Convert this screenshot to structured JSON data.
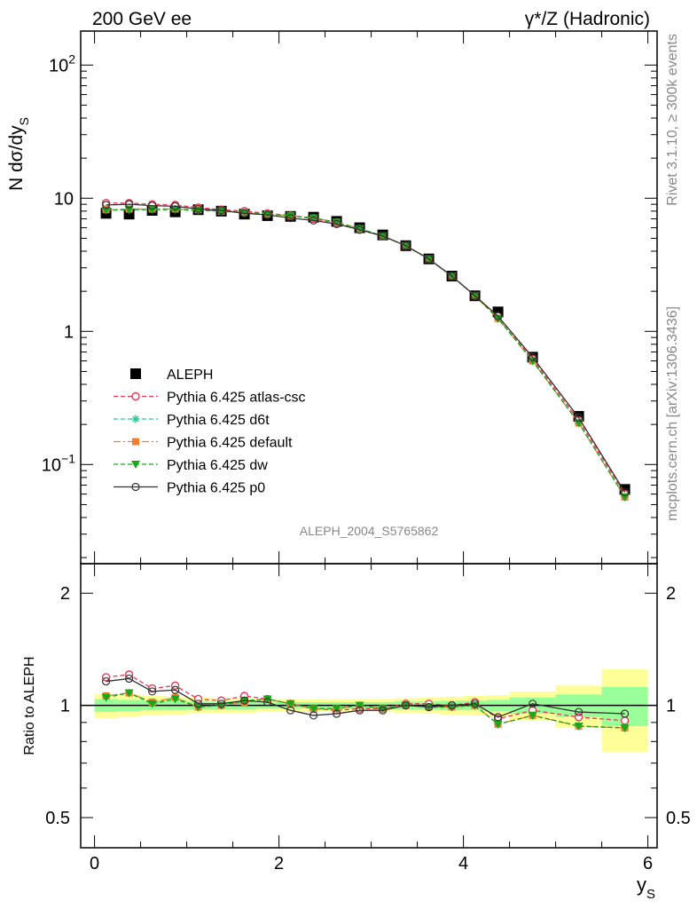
{
  "header": {
    "left": "200 GeV ee",
    "right": "γ*/Z (Hadronic)"
  },
  "side_labels": {
    "rivet": "Rivet 3.1.10, ≥ 300k events",
    "mcplots": "mcplots.cern.ch [arXiv:1306.3436]"
  },
  "watermark": "ALEPH_2004_S5765862",
  "colors": {
    "data": "#000000",
    "atlas_csc": "#e8375a",
    "d6t": "#2fc49a",
    "default": "#f08030",
    "dw": "#1aa81a",
    "p0": "#333333",
    "band_outer": "#ffff99",
    "band_inner": "#99ff99"
  },
  "chart_data": [
    {
      "type": "scatter",
      "scale": "log",
      "ylabel": "N dσ/dy",
      "ylabel_sub": "S",
      "xlim": [
        -0.15,
        6.1
      ],
      "ylim": [
        0.018,
        180
      ],
      "y_ticks": [
        {
          "value": 100,
          "label": "10",
          "sup": "2"
        },
        {
          "value": 10,
          "label": "10",
          "sup": ""
        },
        {
          "value": 1,
          "label": "1",
          "sup": ""
        },
        {
          "value": 0.1,
          "label": "10",
          "sup": "−1"
        }
      ],
      "x": [
        0.125,
        0.375,
        0.625,
        0.875,
        1.125,
        1.375,
        1.625,
        1.875,
        2.125,
        2.375,
        2.625,
        2.875,
        3.125,
        3.375,
        3.625,
        3.875,
        4.125,
        4.375,
        4.75,
        5.25,
        5.75
      ],
      "series": [
        {
          "name": "ALEPH",
          "key": "data",
          "values": [
            7.7,
            7.6,
            8.1,
            7.9,
            8.2,
            8.0,
            7.6,
            7.4,
            7.3,
            7.2,
            6.7,
            6.0,
            5.3,
            4.4,
            3.5,
            2.6,
            1.85,
            1.4,
            0.64,
            0.23,
            0.065
          ]
        },
        {
          "name": "Pythia 6.425 atlas-csc",
          "key": "atlas_csc",
          "values": [
            9.2,
            9.2,
            9.0,
            8.9,
            8.5,
            8.2,
            8.0,
            7.7,
            7.4,
            7.0,
            6.5,
            5.8,
            5.2,
            4.4,
            3.5,
            2.6,
            1.85,
            1.3,
            0.62,
            0.215,
            0.06
          ]
        },
        {
          "name": "Pythia 6.425 d6t",
          "key": "d6t",
          "values": [
            8.2,
            8.2,
            8.3,
            8.3,
            8.2,
            8.0,
            7.8,
            7.6,
            7.4,
            7.1,
            6.6,
            5.9,
            5.2,
            4.4,
            3.5,
            2.6,
            1.85,
            1.25,
            0.6,
            0.205,
            0.057
          ]
        },
        {
          "name": "Pythia 6.425 default",
          "key": "default",
          "values": [
            8.2,
            8.3,
            8.3,
            8.3,
            8.2,
            8.0,
            7.8,
            7.6,
            7.4,
            7.1,
            6.6,
            5.9,
            5.2,
            4.4,
            3.5,
            2.6,
            1.85,
            1.25,
            0.6,
            0.205,
            0.057
          ]
        },
        {
          "name": "Pythia 6.425 dw",
          "key": "dw",
          "values": [
            8.1,
            8.2,
            8.2,
            8.2,
            8.1,
            8.0,
            7.8,
            7.6,
            7.4,
            7.1,
            6.6,
            5.9,
            5.2,
            4.4,
            3.5,
            2.6,
            1.85,
            1.25,
            0.6,
            0.205,
            0.057
          ]
        },
        {
          "name": "Pythia 6.425 p0",
          "key": "p0",
          "values": [
            8.9,
            9.0,
            8.8,
            8.7,
            8.3,
            8.1,
            7.7,
            7.5,
            7.1,
            6.8,
            6.4,
            5.8,
            5.2,
            4.4,
            3.5,
            2.6,
            1.85,
            1.3,
            0.64,
            0.225,
            0.062
          ]
        }
      ],
      "legend": [
        {
          "key": "data",
          "label": "ALEPH"
        },
        {
          "key": "atlas_csc",
          "label": "Pythia 6.425 atlas-csc"
        },
        {
          "key": "d6t",
          "label": "Pythia 6.425 d6t"
        },
        {
          "key": "default",
          "label": "Pythia 6.425 default"
        },
        {
          "key": "dw",
          "label": "Pythia 6.425 dw"
        },
        {
          "key": "p0",
          "label": "Pythia 6.425 p0"
        }
      ],
      "legend_position": "left-middle"
    },
    {
      "type": "line",
      "scale": "log",
      "ylabel": "Ratio to ALEPH",
      "xlabel": "y",
      "xlabel_sub": "S",
      "xlim": [
        -0.15,
        6.1
      ],
      "ylim": [
        0.415,
        2.4
      ],
      "x_ticks": [
        0,
        2,
        4,
        6
      ],
      "y_ticks": [
        {
          "value": 2,
          "label": "2"
        },
        {
          "value": 1,
          "label": "1"
        },
        {
          "value": 0.5,
          "label": "0.5"
        }
      ],
      "bins": [
        [
          0,
          0.25
        ],
        [
          0.25,
          0.5
        ],
        [
          0.5,
          0.75
        ],
        [
          0.75,
          1.0
        ],
        [
          1.0,
          1.25
        ],
        [
          1.25,
          1.5
        ],
        [
          1.5,
          1.75
        ],
        [
          1.75,
          2.0
        ],
        [
          2.0,
          2.25
        ],
        [
          2.25,
          2.5
        ],
        [
          2.5,
          2.75
        ],
        [
          2.75,
          3.0
        ],
        [
          3.0,
          3.25
        ],
        [
          3.25,
          3.5
        ],
        [
          3.5,
          3.75
        ],
        [
          3.75,
          4.0
        ],
        [
          4.0,
          4.25
        ],
        [
          4.25,
          4.5
        ],
        [
          4.5,
          5.0
        ],
        [
          5.0,
          5.5
        ],
        [
          5.5,
          6.0
        ]
      ],
      "band_outer": [
        0.075,
        0.07,
        0.06,
        0.055,
        0.05,
        0.045,
        0.045,
        0.04,
        0.04,
        0.04,
        0.04,
        0.04,
        0.04,
        0.045,
        0.05,
        0.055,
        0.06,
        0.065,
        0.09,
        0.13,
        0.25
      ],
      "band_inner": [
        0.04,
        0.035,
        0.03,
        0.03,
        0.025,
        0.025,
        0.025,
        0.02,
        0.02,
        0.02,
        0.02,
        0.02,
        0.02,
        0.025,
        0.025,
        0.03,
        0.03,
        0.035,
        0.05,
        0.07,
        0.12
      ],
      "series": [
        {
          "key": "atlas_csc",
          "values": [
            1.19,
            1.21,
            1.11,
            1.13,
            1.04,
            1.03,
            1.06,
            1.04,
            1.01,
            0.98,
            0.97,
            0.98,
            0.98,
            1.01,
            1.01,
            1.0,
            1.02,
            0.92,
            0.97,
            0.93,
            0.91
          ]
        },
        {
          "key": "d6t",
          "values": [
            1.06,
            1.08,
            1.02,
            1.05,
            0.99,
            1.0,
            1.02,
            1.04,
            1.01,
            0.98,
            0.98,
            1.0,
            0.98,
            1.0,
            0.99,
            0.99,
            1.0,
            0.89,
            0.94,
            0.88,
            0.87
          ]
        },
        {
          "key": "default",
          "values": [
            1.06,
            1.08,
            1.02,
            1.05,
            0.99,
            1.0,
            1.02,
            1.04,
            1.01,
            0.98,
            0.98,
            1.0,
            0.98,
            1.0,
            0.99,
            0.99,
            1.0,
            0.89,
            0.94,
            0.88,
            0.87
          ]
        },
        {
          "key": "dw",
          "values": [
            1.05,
            1.08,
            1.01,
            1.04,
            0.99,
            1.0,
            1.03,
            1.04,
            1.01,
            0.98,
            0.98,
            1.0,
            0.98,
            1.0,
            0.99,
            0.99,
            1.0,
            0.89,
            0.94,
            0.88,
            0.87
          ]
        },
        {
          "key": "p0",
          "values": [
            1.16,
            1.18,
            1.09,
            1.1,
            1.01,
            1.01,
            1.03,
            1.02,
            0.97,
            0.94,
            0.95,
            0.97,
            0.97,
            1.0,
            0.99,
            1.0,
            1.01,
            0.93,
            1.01,
            0.96,
            0.95
          ]
        }
      ]
    }
  ]
}
